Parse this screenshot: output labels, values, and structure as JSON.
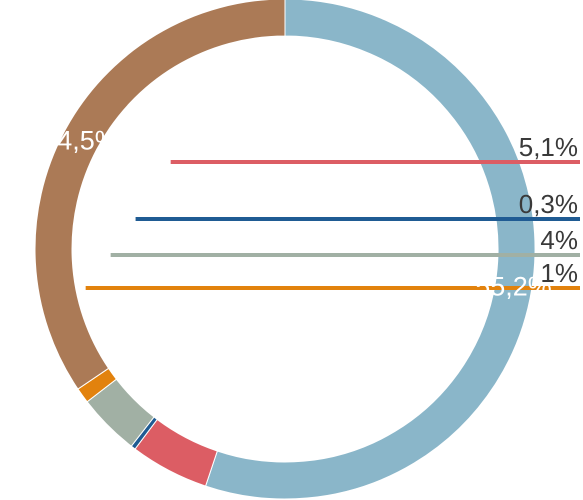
{
  "chart_data": {
    "type": "pie",
    "variant": "donut",
    "start": "top",
    "direction": "clockwise",
    "slices": [
      {
        "label": "55,2%",
        "value": 55.2,
        "color": "#8ab6c9",
        "label_placement": "inside"
      },
      {
        "label": "5,1%",
        "value": 5.1,
        "color": "#dc5d64",
        "label_placement": "outside"
      },
      {
        "label": "0,3%",
        "value": 0.3,
        "color": "#1f5b93",
        "label_placement": "outside"
      },
      {
        "label": "4%",
        "value": 4.0,
        "color": "#a1b0a4",
        "label_placement": "outside"
      },
      {
        "label": "1%",
        "value": 1.0,
        "color": "#e2820d",
        "label_placement": "outside"
      },
      {
        "label": "34,5%",
        "value": 34.5,
        "color": "#ab7a56",
        "label_placement": "inside"
      }
    ]
  }
}
